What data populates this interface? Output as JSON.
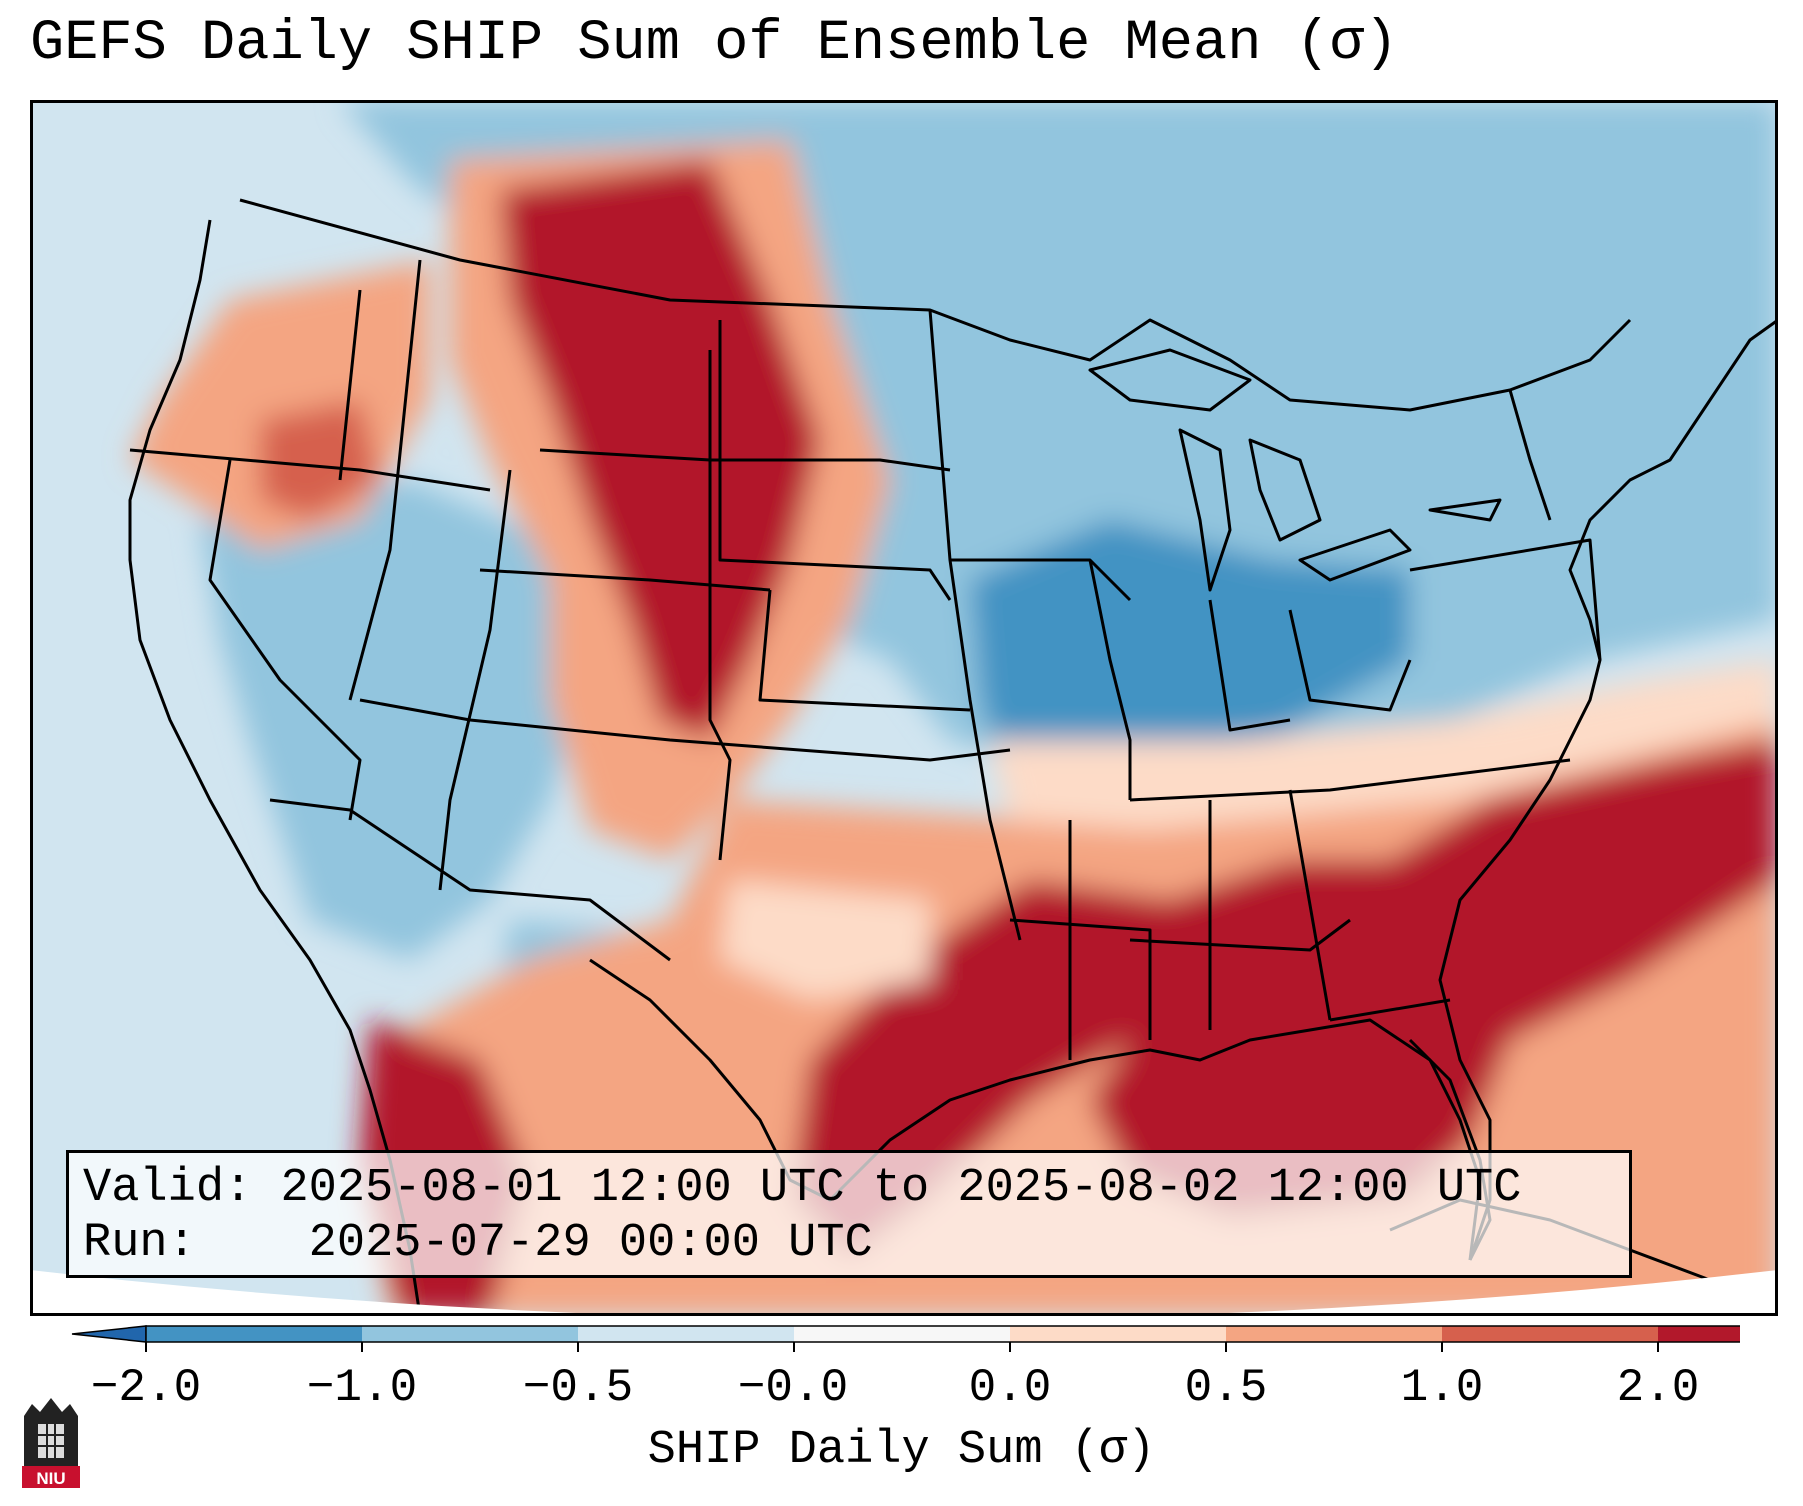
{
  "title": "GEFS Daily SHIP Sum of Ensemble Mean (σ)",
  "info": {
    "valid_label": "Valid:",
    "valid_value": "2025-08-01 12:00 UTC to 2025-08-02 12:00 UTC",
    "run_label": "Run:",
    "run_value": "2025-07-29 00:00 UTC"
  },
  "colorbar": {
    "label": "SHIP Daily Sum (σ)",
    "ticks": [
      "−2.0",
      "−1.0",
      "−0.5",
      "−0.0",
      "0.0",
      "0.5",
      "1.0",
      "2.0"
    ],
    "colors": [
      "#4393c3",
      "#92c5de",
      "#d1e5f0",
      "#f7f7f7",
      "#fddbc7",
      "#f4a582",
      "#d6604d",
      "#b2182b"
    ],
    "under_color": "#2166ac",
    "over_color": "#b2182b"
  },
  "logo": {
    "text": "NIU",
    "color": "#c8102e"
  },
  "map": {
    "region": "Continental United States",
    "ocean_color": "#d1e5f0",
    "border_color": "#000000"
  }
}
